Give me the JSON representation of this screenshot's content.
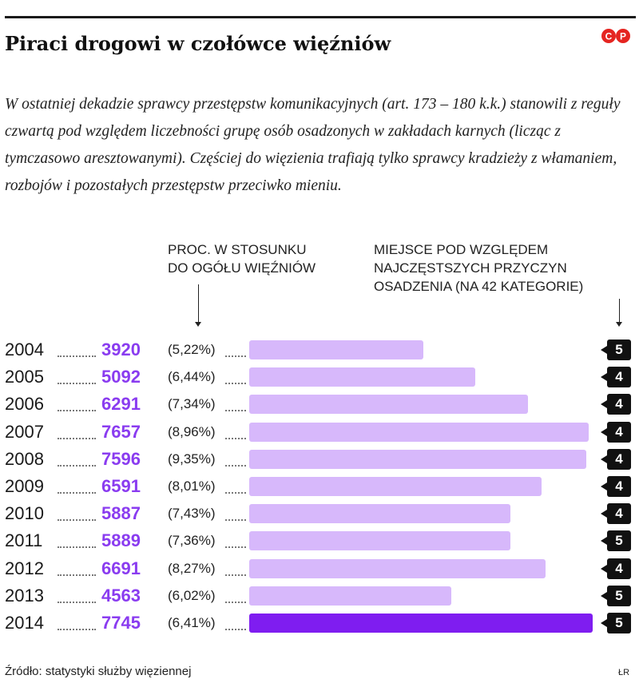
{
  "title": "Piraci drogowi w czołówce więźniów",
  "lead": "W ostatniej dekadzie sprawcy przestępstw komunikacyjnych (art. 173 – 180 k.k.) stanowili z reguły czwartą pod względem liczebności grupę osób osadzonych w zakładach karnych (licząc z tymczasowo aresztowanymi). Częściej do więzienia trafiają tylko sprawcy kradzieży z włamaniem, rozbojów i pozostałych przestępstw przeciwko mieniu.",
  "logo_text": "©P",
  "headers": {
    "pct_line1": "Proc. w stosunku",
    "pct_line2": "do ogółu więźniów",
    "rank_line1": "Miejsce pod względem",
    "rank_line2": "najczęstszych przyczyn",
    "rank_line3": "osadzenia (na 42 kategorie)"
  },
  "chart_data": {
    "type": "bar",
    "orientation": "horizontal",
    "categories": [
      "2004",
      "2005",
      "2006",
      "2007",
      "2008",
      "2009",
      "2010",
      "2011",
      "2012",
      "2013",
      "2014"
    ],
    "values": [
      3920,
      5092,
      6291,
      7657,
      7596,
      6591,
      5887,
      5889,
      6691,
      4563,
      7745
    ],
    "value_labels": [
      "3920",
      "5092",
      "6291",
      "7657",
      "7596",
      "6591",
      "5887",
      "5889",
      "6691",
      "4563",
      "7745"
    ],
    "percent_labels": [
      "(5,22%)",
      "(6,44%)",
      "(7,34%)",
      "(8,96%)",
      "(9,35%)",
      "(8,01%)",
      "(7,43%)",
      "(7,36%)",
      "(8,27%)",
      "(6,02%)",
      "(6,41%)"
    ],
    "ranks": [
      "5",
      "4",
      "4",
      "4",
      "4",
      "4",
      "4",
      "5",
      "4",
      "5",
      "5"
    ],
    "highlight_category": "2014",
    "colors": {
      "bar": "#d7b8fb",
      "highlight": "#7f1df0",
      "value_text": "#8a3cf0",
      "rank_box": "#111111"
    },
    "xlim": [
      0,
      7745
    ]
  },
  "source": "Źródło: statystyki służby więziennej",
  "credit": "ŁR"
}
